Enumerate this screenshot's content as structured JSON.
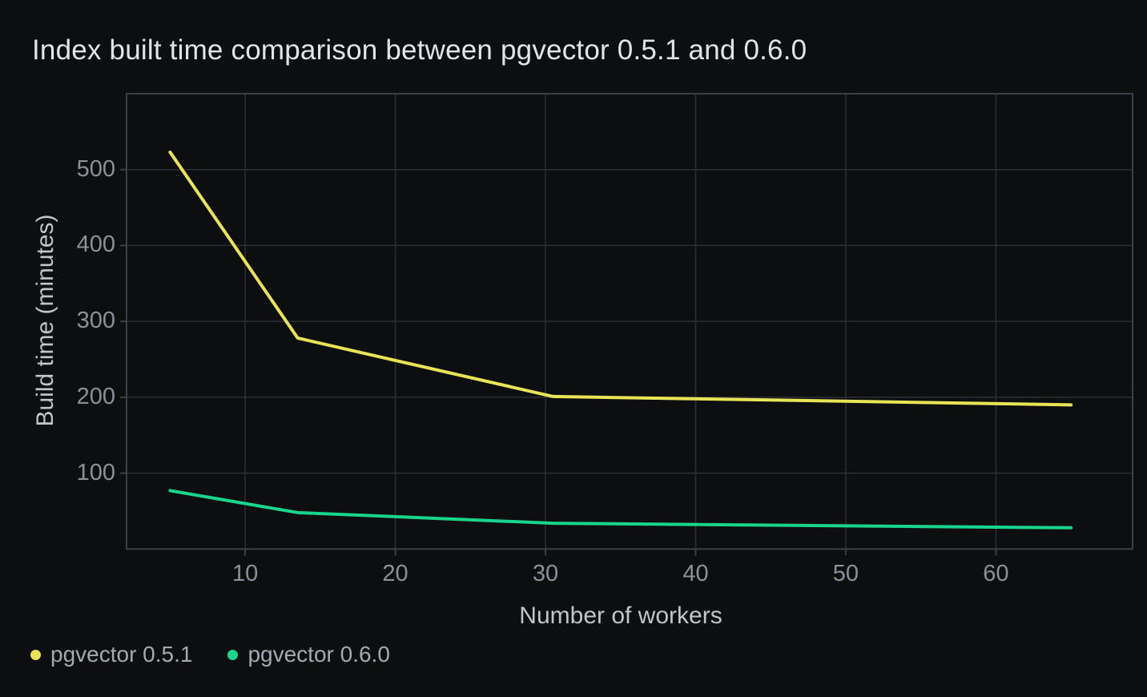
{
  "title": {
    "text": "Index built time comparison between pgvector 0.5.1 and 0.6.0"
  },
  "chart_data": {
    "type": "line",
    "title": "Index built time comparison between pgvector 0.5.1 and 0.6.0",
    "xlabel": "Number of workers",
    "ylabel": "Build time (minutes)",
    "x": [
      5,
      13.5,
      30.5,
      65
    ],
    "series": [
      {
        "name": "pgvector 0.5.1",
        "color": "#e9e455",
        "values": [
          523,
          278,
          201,
          190
        ]
      },
      {
        "name": "pgvector 0.6.0",
        "color": "#19d58c",
        "values": [
          77,
          48,
          34,
          28
        ]
      }
    ],
    "x_ticks": [
      10,
      20,
      30,
      40,
      50,
      60
    ],
    "y_ticks": [
      100,
      200,
      300,
      400,
      500
    ],
    "xlim": [
      2.1,
      69.1
    ],
    "ylim": [
      0,
      600
    ],
    "grid": true,
    "legend_position": "bottom-left"
  },
  "colors": {
    "background": "#0d0e10",
    "grid": "#2b3036",
    "plot_border": "#3a4046",
    "tick_label": "#8b9198",
    "axis_title": "#c3c6c9",
    "chart_title": "#e2e4e6",
    "legend_label": "#a4aab0"
  }
}
